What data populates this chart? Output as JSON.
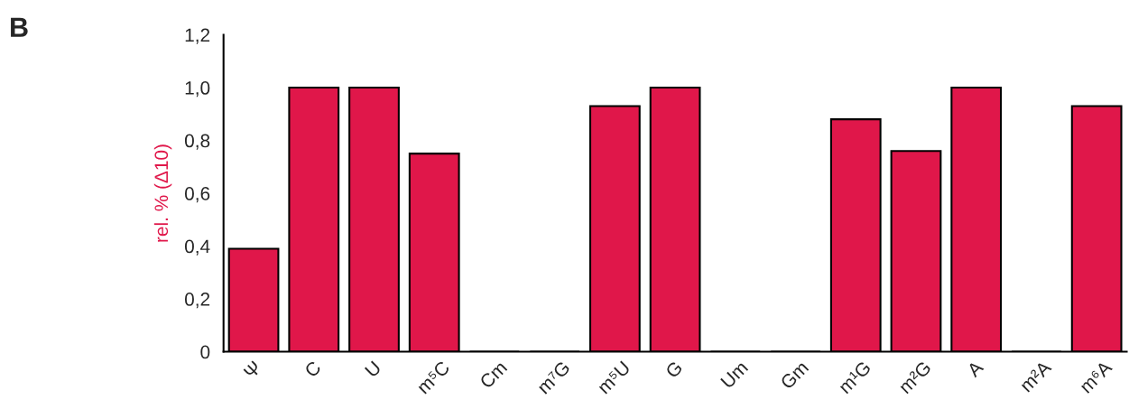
{
  "chart_data": {
    "type": "bar",
    "ylabel": "rel. % (Δ10)",
    "annotations": [
      "B"
    ],
    "categories": [
      "Ψ",
      "C",
      "U",
      "m⁵C",
      "Cm",
      "m⁷G",
      "m⁵U",
      "G",
      "Um",
      "Gm",
      "m¹G",
      "m²G",
      "A",
      "m²A",
      "m⁶A"
    ],
    "values": [
      0.39,
      1.0,
      1.0,
      0.75,
      0,
      0,
      0.93,
      1.0,
      0,
      0,
      0.88,
      0.76,
      1.0,
      0,
      0.93
    ],
    "color": "#e0174a",
    "ylim": [
      0,
      1.2
    ],
    "yticks": [
      {
        "value": 0,
        "label": "0"
      },
      {
        "value": 0.2,
        "label": "0,2"
      },
      {
        "value": 0.4,
        "label": "0,4"
      },
      {
        "value": 0.6,
        "label": "0,6"
      },
      {
        "value": 0.8,
        "label": "0,8"
      },
      {
        "value": 1.0,
        "label": "1,0"
      },
      {
        "value": 1.2,
        "label": "1,2"
      }
    ],
    "grid": false,
    "legend": false
  }
}
